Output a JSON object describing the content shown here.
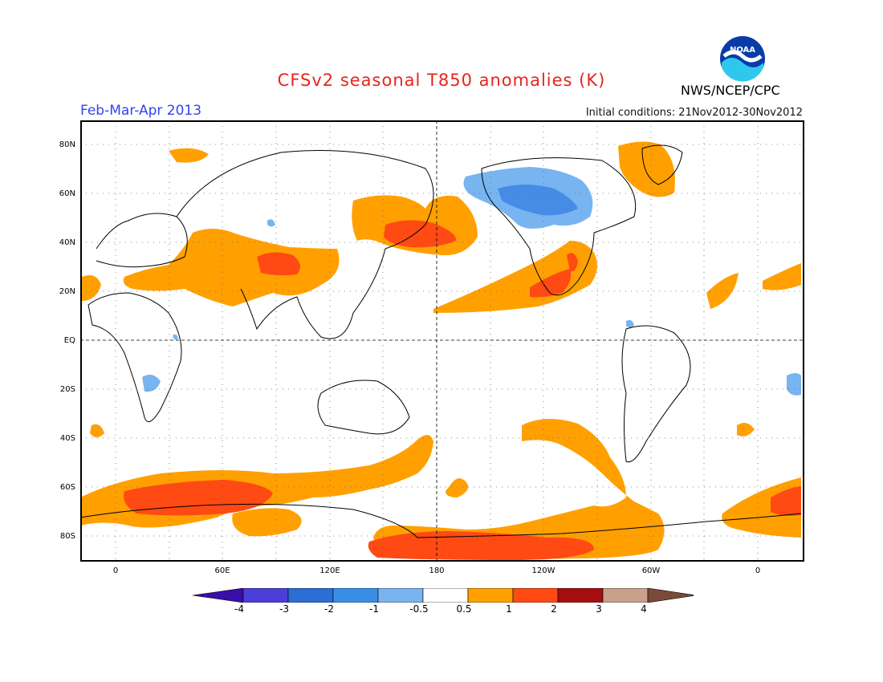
{
  "header": {
    "title": "CFSv2 seasonal T850 anomalies (K)",
    "season": "Feb-Mar-Apr 2013",
    "initial_conditions": "Initial conditions: 21Nov2012-30Nov2012",
    "agency": "NWS/NCEP/CPC",
    "logo_text": "NOAA"
  },
  "map": {
    "lat_labels": [
      "80N",
      "60N",
      "40N",
      "20N",
      "EQ",
      "20S",
      "40S",
      "60S",
      "80S"
    ],
    "lon_labels": [
      "0",
      "60E",
      "120E",
      "180",
      "120W",
      "60W",
      "0"
    ],
    "colors": {
      "warm_1": "#ffa000",
      "warm_2": "#ff4a14",
      "cold_1": "#78b4f0",
      "cold_2": "#468ce6"
    }
  },
  "colorbar": {
    "labels": [
      "-4",
      "-3",
      "-2",
      "-1",
      "-0.5",
      "0.5",
      "1",
      "2",
      "3",
      "4"
    ],
    "colors": [
      "#3a0ea8",
      "#4c3fd8",
      "#2b6ed6",
      "#3a8ee6",
      "#78b4f0",
      "#ffffff",
      "#ffa000",
      "#ff4a14",
      "#a50f0f",
      "#c8a08c",
      "#7a4a3a"
    ]
  }
}
